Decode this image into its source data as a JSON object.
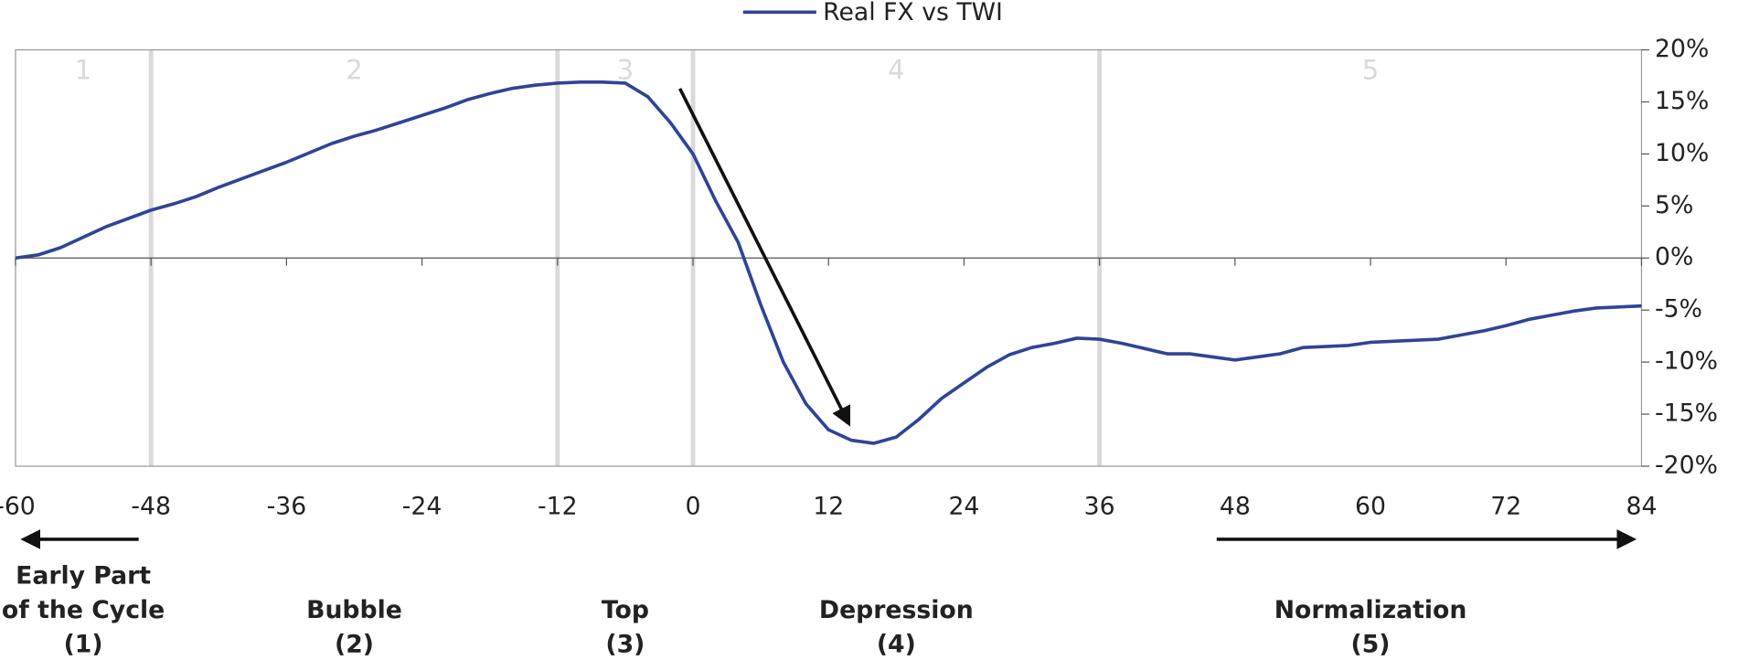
{
  "chart_data": {
    "type": "line",
    "legend": "top",
    "grid": false,
    "x": [
      -60,
      -58,
      -56,
      -54,
      -52,
      -50,
      -48,
      -46,
      -44,
      -42,
      -40,
      -38,
      -36,
      -34,
      -32,
      -30,
      -28,
      -26,
      -24,
      -22,
      -20,
      -18,
      -16,
      -14,
      -12,
      -10,
      -8,
      -6,
      -4,
      -2,
      0,
      2,
      4,
      6,
      8,
      10,
      12,
      14,
      16,
      18,
      20,
      22,
      24,
      26,
      28,
      30,
      32,
      34,
      36,
      38,
      40,
      42,
      44,
      46,
      48,
      50,
      52,
      54,
      56,
      58,
      60,
      62,
      64,
      66,
      68,
      70,
      72,
      74,
      76,
      78,
      80,
      82,
      84
    ],
    "series": [
      {
        "name": "Real FX vs TWI",
        "color": "#2e4496",
        "values": [
          0,
          0.3,
          1.0,
          2.0,
          3.0,
          3.8,
          4.6,
          5.2,
          5.9,
          6.8,
          7.6,
          8.4,
          9.2,
          10.1,
          11.0,
          11.7,
          12.3,
          13.0,
          13.7,
          14.4,
          15.2,
          15.8,
          16.3,
          16.6,
          16.8,
          16.9,
          16.9,
          16.8,
          15.5,
          13.0,
          10.0,
          5.5,
          1.5,
          -4.5,
          -10,
          -14,
          -16.5,
          -17.5,
          -17.8,
          -17.2,
          -15.5,
          -13.5,
          -12,
          -10.5,
          -9.3,
          -8.6,
          -8.2,
          -7.7,
          -7.8,
          -8.2,
          -8.7,
          -9.2,
          -9.2,
          -9.5,
          -9.8,
          -9.5,
          -9.2,
          -8.6,
          -8.5,
          -8.4,
          -8.1,
          -8.0,
          -7.9,
          -7.8,
          -7.4,
          -7.0,
          -6.5,
          -5.9,
          -5.5,
          -5.1,
          -4.8,
          -4.7,
          -4.6
        ]
      }
    ],
    "xlim": [
      -60,
      84
    ],
    "xticks": [
      -60,
      -48,
      -36,
      -24,
      -12,
      0,
      12,
      24,
      36,
      48,
      60,
      72,
      84
    ],
    "ylim": [
      -20,
      20
    ],
    "yticks": [
      {
        "value": 20,
        "label": "20%"
      },
      {
        "value": 15,
        "label": "15%"
      },
      {
        "value": 10,
        "label": "10%"
      },
      {
        "value": 5,
        "label": "5%"
      },
      {
        "value": 0,
        "label": "0%"
      },
      {
        "value": -5,
        "label": "-5%"
      },
      {
        "value": -10,
        "label": "-10%"
      },
      {
        "value": -15,
        "label": "-15%"
      },
      {
        "value": -20,
        "label": "-20%"
      }
    ],
    "phase_boundaries": [
      -48,
      -12,
      0,
      36
    ],
    "phases": [
      {
        "number": "1",
        "lines": [
          "Early Part",
          "of the Cycle",
          "(1)"
        ]
      },
      {
        "number": "2",
        "lines": [
          "Bubble",
          "(2)"
        ]
      },
      {
        "number": "3",
        "lines": [
          "Top",
          "(3)"
        ]
      },
      {
        "number": "4",
        "lines": [
          "Depression",
          "(4)"
        ]
      },
      {
        "number": "5",
        "lines": [
          "Normalization",
          "(5)"
        ]
      }
    ]
  }
}
